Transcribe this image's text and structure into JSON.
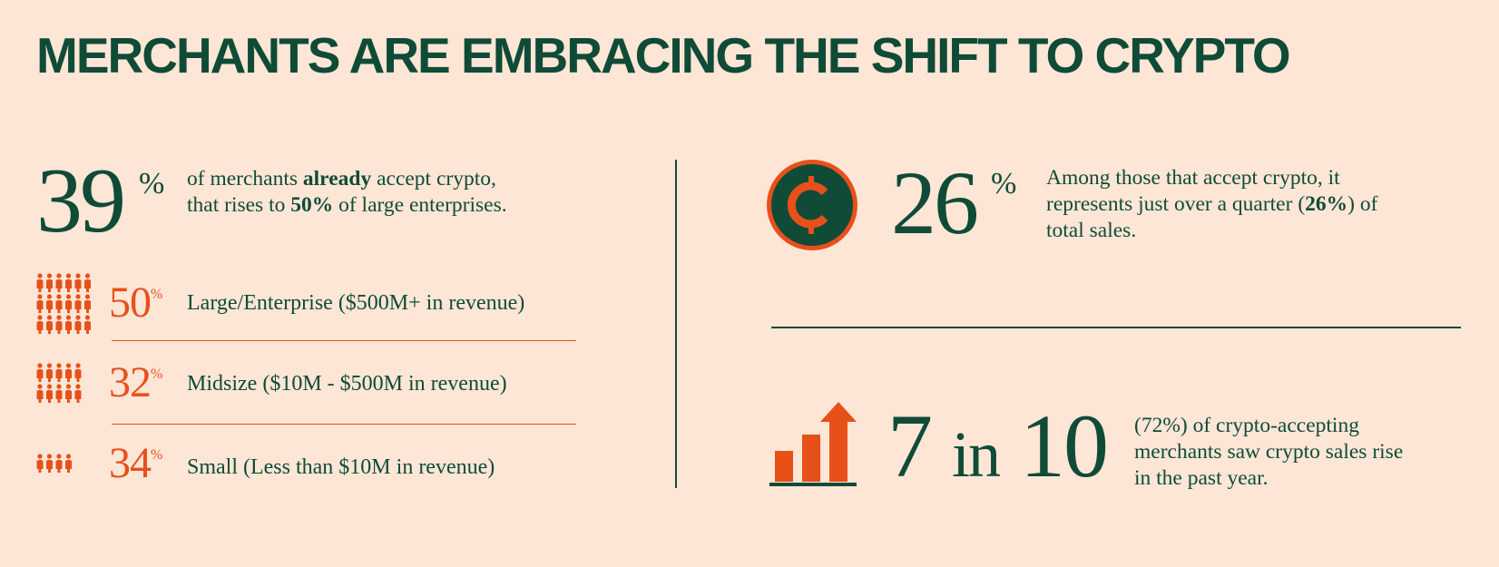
{
  "title": "MERCHANTS ARE EMBRACING THE SHIFT TO CRYPTO",
  "colors": {
    "background": "#fde6d6",
    "green": "#0f4b37",
    "orange": "#e8501a"
  },
  "left": {
    "headline_value": "39",
    "headline_unit": "%",
    "headline_text": {
      "p1": "of merchants ",
      "b1": "already",
      "p2": " accept crypto, that rises to ",
      "b2": "50%",
      "p3": " of large enterprises."
    },
    "segments": [
      {
        "value": "50",
        "unit": "%",
        "label": "Large/Enterprise ($500M+ in revenue)",
        "icon": "people-large-group-icon"
      },
      {
        "value": "32",
        "unit": "%",
        "label": "Midsize ($10M - $500M in revenue)",
        "icon": "people-medium-group-icon"
      },
      {
        "value": "34",
        "unit": "%",
        "label": "Small (Less than $10M in revenue)",
        "icon": "people-small-group-icon"
      }
    ]
  },
  "right": {
    "stat1": {
      "icon": "crypto-coin-icon",
      "value": "26",
      "unit": "%",
      "text": {
        "p1": "Among those that accept crypto, it represents just over a quarter (",
        "b1": "26%",
        "p2": ") of total sales."
      }
    },
    "stat2": {
      "icon": "growth-chart-icon",
      "value_a": "7",
      "value_in": "in",
      "value_b": "10",
      "text": "(72%) of crypto-accepting merchants saw crypto sales rise in the past year."
    }
  }
}
